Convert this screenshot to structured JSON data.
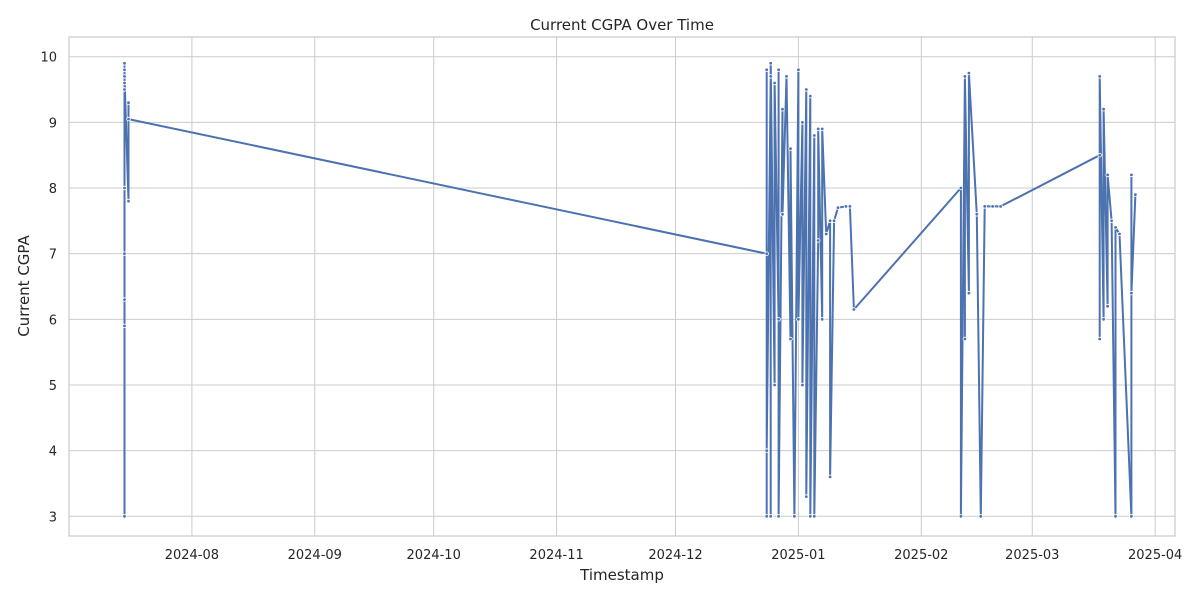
{
  "chart_data": {
    "type": "line",
    "title": "Current CGPA Over Time",
    "xlabel": "Timestamp",
    "ylabel": "Current CGPA",
    "xlim": [
      "2024-07-01",
      "2025-04-06"
    ],
    "ylim": [
      2.7,
      10.3
    ],
    "x_ticks": [
      "2024-08",
      "2024-09",
      "2024-10",
      "2024-11",
      "2024-12",
      "2025-01",
      "2025-02",
      "2025-03",
      "2025-04"
    ],
    "y_ticks": [
      "3",
      "4",
      "5",
      "6",
      "7",
      "8",
      "9",
      "10"
    ],
    "grid": true,
    "legend": "none",
    "colors": {
      "line": "#4c72b0",
      "marker_edge": "#ffffff",
      "grid": "#cccccc",
      "spine": "#cccccc"
    },
    "series": [
      {
        "points": [
          [
            "2024-07-15",
            3.0
          ],
          [
            "2024-07-15",
            9.8
          ],
          [
            "2024-07-15",
            5.9
          ],
          [
            "2024-07-15",
            9.5
          ],
          [
            "2024-07-15",
            6.3
          ],
          [
            "2024-07-15",
            9.9
          ],
          [
            "2024-07-15",
            7.0
          ],
          [
            "2024-07-15",
            9.6
          ],
          [
            "2024-07-15",
            8.0
          ],
          [
            "2024-07-15",
            9.7
          ],
          [
            "2024-07-16",
            7.8
          ],
          [
            "2024-07-16",
            9.3
          ],
          [
            "2024-07-16",
            9.05
          ],
          [
            "2024-12-24",
            7.0
          ],
          [
            "2024-12-24",
            3.0
          ],
          [
            "2024-12-24",
            9.8
          ],
          [
            "2024-12-24",
            4.0
          ],
          [
            "2024-12-25",
            9.7
          ],
          [
            "2024-12-25",
            3.0
          ],
          [
            "2024-12-25",
            9.9
          ],
          [
            "2024-12-26",
            5.0
          ],
          [
            "2024-12-26",
            9.6
          ],
          [
            "2024-12-27",
            6.0
          ],
          [
            "2024-12-27",
            9.8
          ],
          [
            "2024-12-27",
            3.0
          ],
          [
            "2024-12-28",
            9.2
          ],
          [
            "2024-12-28",
            7.6
          ],
          [
            "2024-12-29",
            9.7
          ],
          [
            "2024-12-30",
            5.7
          ],
          [
            "2024-12-30",
            8.6
          ],
          [
            "2024-12-31",
            3.0
          ],
          [
            "2025-01-01",
            9.8
          ],
          [
            "2025-01-01",
            6.0
          ],
          [
            "2025-01-02",
            9.0
          ],
          [
            "2025-01-02",
            5.0
          ],
          [
            "2025-01-03",
            9.5
          ],
          [
            "2025-01-03",
            3.3
          ],
          [
            "2025-01-04",
            9.4
          ],
          [
            "2025-01-04",
            3.0
          ],
          [
            "2025-01-05",
            8.8
          ],
          [
            "2025-01-05",
            3.0
          ],
          [
            "2025-01-06",
            7.2
          ],
          [
            "2025-01-06",
            8.9
          ],
          [
            "2025-01-07",
            6.0
          ],
          [
            "2025-01-07",
            8.9
          ],
          [
            "2025-01-08",
            7.3
          ],
          [
            "2025-01-09",
            7.5
          ],
          [
            "2025-01-09",
            3.6
          ],
          [
            "2025-01-10",
            7.5
          ],
          [
            "2025-01-11",
            7.7
          ],
          [
            "2025-01-13",
            7.72
          ],
          [
            "2025-01-14",
            7.72
          ],
          [
            "2025-01-15",
            6.15
          ],
          [
            "2025-02-11",
            8.0
          ],
          [
            "2025-02-11",
            3.0
          ],
          [
            "2025-02-12",
            9.7
          ],
          [
            "2025-02-12",
            5.7
          ],
          [
            "2025-02-12",
            9.7
          ],
          [
            "2025-02-13",
            6.4
          ],
          [
            "2025-02-13",
            9.75
          ],
          [
            "2025-02-15",
            7.6
          ],
          [
            "2025-02-16",
            3.0
          ],
          [
            "2025-02-17",
            7.72
          ],
          [
            "2025-02-19",
            7.72
          ],
          [
            "2025-02-21",
            7.72
          ],
          [
            "2025-03-18",
            8.5
          ],
          [
            "2025-03-18",
            5.7
          ],
          [
            "2025-03-18",
            9.7
          ],
          [
            "2025-03-19",
            6.0
          ],
          [
            "2025-03-19",
            9.2
          ],
          [
            "2025-03-20",
            6.2
          ],
          [
            "2025-03-20",
            8.2
          ],
          [
            "2025-03-21",
            7.5
          ],
          [
            "2025-03-22",
            3.0
          ],
          [
            "2025-03-22",
            7.4
          ],
          [
            "2025-03-23",
            7.3
          ],
          [
            "2025-03-26",
            3.0
          ],
          [
            "2025-03-26",
            8.2
          ],
          [
            "2025-03-26",
            6.4
          ],
          [
            "2025-03-27",
            7.9
          ]
        ]
      }
    ]
  }
}
